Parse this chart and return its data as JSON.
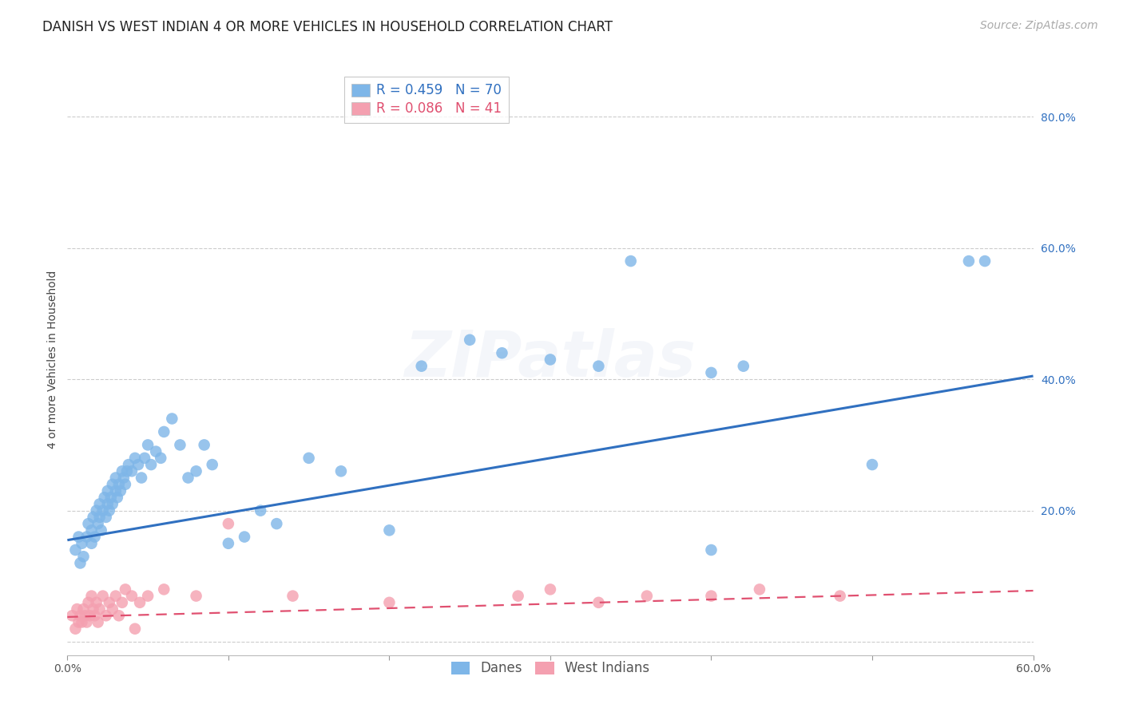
{
  "title": "DANISH VS WEST INDIAN 4 OR MORE VEHICLES IN HOUSEHOLD CORRELATION CHART",
  "source": "Source: ZipAtlas.com",
  "ylabel": "4 or more Vehicles in Household",
  "watermark": "ZIPatlas",
  "xlim": [
    0.0,
    0.6
  ],
  "ylim": [
    -0.02,
    0.88
  ],
  "xticks": [
    0.0,
    0.6
  ],
  "yticks": [
    0.0,
    0.2,
    0.4,
    0.6,
    0.8
  ],
  "ytick_labels": [
    "",
    "20.0%",
    "40.0%",
    "60.0%",
    "80.0%"
  ],
  "xtick_labels": [
    "0.0%",
    "60.0%"
  ],
  "blue_R": 0.459,
  "blue_N": 70,
  "pink_R": 0.086,
  "pink_N": 41,
  "blue_color": "#7EB6E8",
  "pink_color": "#F4A0B0",
  "blue_line_color": "#3070C0",
  "pink_line_color": "#E05070",
  "blue_line_x": [
    0.0,
    0.6
  ],
  "blue_line_y": [
    0.155,
    0.405
  ],
  "pink_line_x": [
    0.0,
    0.6
  ],
  "pink_line_y": [
    0.038,
    0.078
  ],
  "blue_scatter_x": [
    0.005,
    0.007,
    0.008,
    0.009,
    0.01,
    0.012,
    0.013,
    0.015,
    0.015,
    0.016,
    0.017,
    0.018,
    0.019,
    0.02,
    0.02,
    0.021,
    0.022,
    0.023,
    0.024,
    0.025,
    0.025,
    0.026,
    0.027,
    0.028,
    0.028,
    0.03,
    0.03,
    0.031,
    0.032,
    0.033,
    0.034,
    0.035,
    0.036,
    0.037,
    0.038,
    0.04,
    0.042,
    0.044,
    0.046,
    0.048,
    0.05,
    0.052,
    0.055,
    0.058,
    0.06,
    0.065,
    0.07,
    0.075,
    0.08,
    0.085,
    0.09,
    0.1,
    0.11,
    0.12,
    0.13,
    0.15,
    0.17,
    0.2,
    0.22,
    0.25,
    0.27,
    0.3,
    0.33,
    0.35,
    0.4,
    0.4,
    0.42,
    0.5,
    0.56,
    0.57
  ],
  "blue_scatter_y": [
    0.14,
    0.16,
    0.12,
    0.15,
    0.13,
    0.16,
    0.18,
    0.15,
    0.17,
    0.19,
    0.16,
    0.2,
    0.18,
    0.19,
    0.21,
    0.17,
    0.2,
    0.22,
    0.19,
    0.21,
    0.23,
    0.2,
    0.22,
    0.21,
    0.24,
    0.23,
    0.25,
    0.22,
    0.24,
    0.23,
    0.26,
    0.25,
    0.24,
    0.26,
    0.27,
    0.26,
    0.28,
    0.27,
    0.25,
    0.28,
    0.3,
    0.27,
    0.29,
    0.28,
    0.32,
    0.34,
    0.3,
    0.25,
    0.26,
    0.3,
    0.27,
    0.15,
    0.16,
    0.2,
    0.18,
    0.28,
    0.26,
    0.17,
    0.42,
    0.46,
    0.44,
    0.43,
    0.42,
    0.58,
    0.41,
    0.14,
    0.42,
    0.27,
    0.58,
    0.58
  ],
  "pink_scatter_x": [
    0.003,
    0.005,
    0.006,
    0.007,
    0.008,
    0.009,
    0.01,
    0.011,
    0.012,
    0.013,
    0.014,
    0.015,
    0.016,
    0.017,
    0.018,
    0.019,
    0.02,
    0.022,
    0.024,
    0.026,
    0.028,
    0.03,
    0.032,
    0.034,
    0.036,
    0.04,
    0.042,
    0.045,
    0.05,
    0.06,
    0.08,
    0.1,
    0.14,
    0.2,
    0.28,
    0.3,
    0.33,
    0.36,
    0.4,
    0.43,
    0.48
  ],
  "pink_scatter_y": [
    0.04,
    0.02,
    0.05,
    0.03,
    0.04,
    0.03,
    0.05,
    0.04,
    0.03,
    0.06,
    0.04,
    0.07,
    0.05,
    0.04,
    0.06,
    0.03,
    0.05,
    0.07,
    0.04,
    0.06,
    0.05,
    0.07,
    0.04,
    0.06,
    0.08,
    0.07,
    0.02,
    0.06,
    0.07,
    0.08,
    0.07,
    0.18,
    0.07,
    0.06,
    0.07,
    0.08,
    0.06,
    0.07,
    0.07,
    0.08,
    0.07
  ],
  "background_color": "#FFFFFF",
  "grid_color": "#CCCCCC",
  "title_fontsize": 12,
  "axis_label_fontsize": 10,
  "tick_fontsize": 10,
  "legend_fontsize": 12,
  "source_fontsize": 10,
  "watermark_alpha": 0.13,
  "watermark_fontsize": 58
}
